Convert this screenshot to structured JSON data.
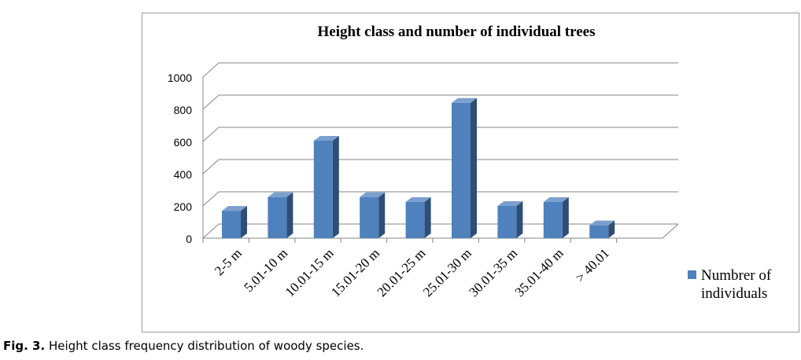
{
  "caption": {
    "label": "Fig. 3.",
    "text": "Height class frequency distribution of woody species."
  },
  "chart_data": {
    "type": "bar",
    "title": "Height class and number of individual trees",
    "xlabel": "",
    "ylabel": "",
    "ylim": [
      0,
      1000
    ],
    "yticks": [
      0,
      200,
      400,
      600,
      800,
      1000
    ],
    "categories": [
      "2-5 m",
      "5.01-10 m",
      "10.01-15 m",
      "15.01-20 m",
      "20.01-25 m",
      "25.01-30 m",
      "30.01-35 m",
      "35.01-40 m",
      "> 40.01"
    ],
    "series": [
      {
        "name": "Numbrer of individuals",
        "values": [
          170,
          255,
          605,
          255,
          225,
          840,
          200,
          225,
          80
        ]
      }
    ],
    "grid": true,
    "legend_position": "right",
    "style": "3d-column",
    "colors": {
      "bar_front": "#4F81BD",
      "bar_side": "#2E4E75",
      "bar_top": "#7BA0CF",
      "grid": "#868686"
    }
  }
}
